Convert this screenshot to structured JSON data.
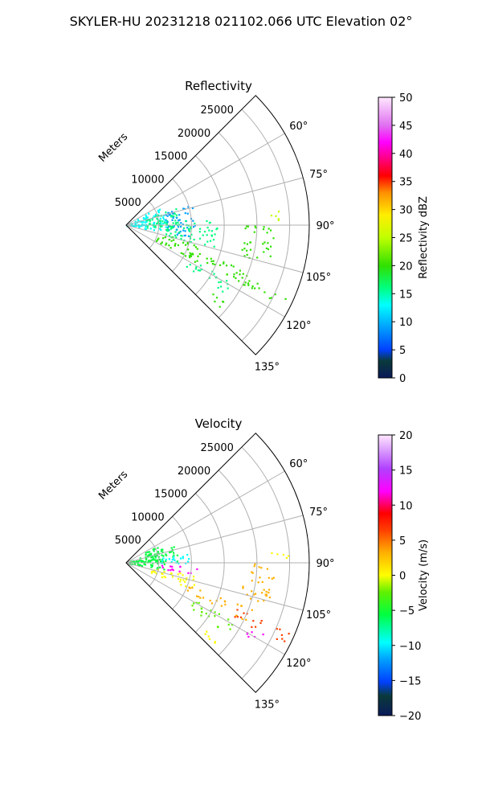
{
  "suptitle": "SKYLER-HU  20231218  021102.066 UTC Elevation 02°",
  "chart_data": [
    {
      "type": "heatmap",
      "subtype": "polar-sector-ppi",
      "title": "Reflectivity",
      "radial_label": "Meters",
      "range_ticks": [
        "5000",
        "10000",
        "15000",
        "20000",
        "25000"
      ],
      "range_values": [
        5000,
        10000,
        15000,
        20000,
        25000
      ],
      "rmax": 28000,
      "azimuth_range_deg": [
        45,
        135
      ],
      "azimuth_ticks": [
        "60°",
        "75°",
        "90°",
        "105°",
        "120°",
        "135°"
      ],
      "azimuth_values": [
        60,
        75,
        90,
        105,
        120,
        135
      ],
      "colorbar": {
        "label": "Reflectivity dBZ",
        "min": 0,
        "max": 50,
        "ticks": [
          "0",
          "5",
          "10",
          "15",
          "20",
          "25",
          "30",
          "35",
          "40",
          "45",
          "50"
        ],
        "tick_values": [
          0,
          5,
          10,
          15,
          20,
          25,
          30,
          35,
          40,
          45,
          50
        ]
      },
      "echoes": [
        {
          "az": [
            60,
            100
          ],
          "r": [
            0,
            6000
          ],
          "value": 15
        },
        {
          "az": [
            70,
            96
          ],
          "r": [
            3000,
            8000
          ],
          "value": 18
        },
        {
          "az": [
            72,
            100
          ],
          "r": [
            6000,
            10500
          ],
          "value": 12
        },
        {
          "az": [
            85,
            105
          ],
          "r": [
            6000,
            14000
          ],
          "value": 19
        },
        {
          "az": [
            104,
            118
          ],
          "r": [
            5000,
            12000
          ],
          "value": 20
        },
        {
          "az": [
            110,
            116
          ],
          "r": [
            10000,
            21000
          ],
          "value": 22
        },
        {
          "az": [
            112,
            117
          ],
          "r": [
            18000,
            27000
          ],
          "value": 24
        },
        {
          "az": [
            118,
            125
          ],
          "r": [
            11000,
            19000
          ],
          "value": 18
        },
        {
          "az": [
            128,
            133
          ],
          "r": [
            16000,
            19000
          ],
          "value": 22
        },
        {
          "az": [
            90,
            106
          ],
          "r": [
            18000,
            23000
          ],
          "value": 20
        },
        {
          "az": [
            84,
            88
          ],
          "r": [
            22000,
            25000
          ],
          "value": 26
        }
      ]
    },
    {
      "type": "heatmap",
      "subtype": "polar-sector-ppi",
      "title": "Velocity",
      "radial_label": "Meters",
      "range_ticks": [
        "5000",
        "10000",
        "15000",
        "20000",
        "25000"
      ],
      "range_values": [
        5000,
        10000,
        15000,
        20000,
        25000
      ],
      "rmax": 28000,
      "azimuth_range_deg": [
        45,
        135
      ],
      "azimuth_ticks": [
        "60°",
        "75°",
        "90°",
        "105°",
        "120°",
        "135°"
      ],
      "azimuth_values": [
        60,
        75,
        90,
        105,
        120,
        135
      ],
      "colorbar": {
        "label": "Velocity (m/s)",
        "min": -20,
        "max": 20,
        "ticks": [
          "−20",
          "−15",
          "−10",
          "−5",
          "0",
          "5",
          "10",
          "15",
          "20"
        ],
        "tick_values": [
          -20,
          -15,
          -10,
          -5,
          0,
          5,
          10,
          15,
          20
        ]
      },
      "echoes": [
        {
          "az": [
            60,
            100
          ],
          "r": [
            0,
            6000
          ],
          "value": -6
        },
        {
          "az": [
            70,
            88
          ],
          "r": [
            3000,
            8000
          ],
          "value": -4
        },
        {
          "az": [
            80,
            90
          ],
          "r": [
            5000,
            10000
          ],
          "value": -9
        },
        {
          "az": [
            93,
            99
          ],
          "r": [
            5000,
            11000
          ],
          "value": 13
        },
        {
          "az": [
            100,
            112
          ],
          "r": [
            4000,
            11000
          ],
          "value": 2
        },
        {
          "az": [
            110,
            116
          ],
          "r": [
            10000,
            21000
          ],
          "value": 4
        },
        {
          "az": [
            112,
            117
          ],
          "r": [
            18000,
            27000
          ],
          "value": 8
        },
        {
          "az": [
            118,
            125
          ],
          "r": [
            11000,
            19000
          ],
          "value": -2
        },
        {
          "az": [
            117,
            121
          ],
          "r": [
            21000,
            25000
          ],
          "value": 14
        },
        {
          "az": [
            128,
            133
          ],
          "r": [
            16000,
            19000
          ],
          "value": 0
        },
        {
          "az": [
            90,
            106
          ],
          "r": [
            18000,
            23000
          ],
          "value": 3
        },
        {
          "az": [
            84,
            88
          ],
          "r": [
            22000,
            25000
          ],
          "value": 1
        }
      ]
    }
  ]
}
